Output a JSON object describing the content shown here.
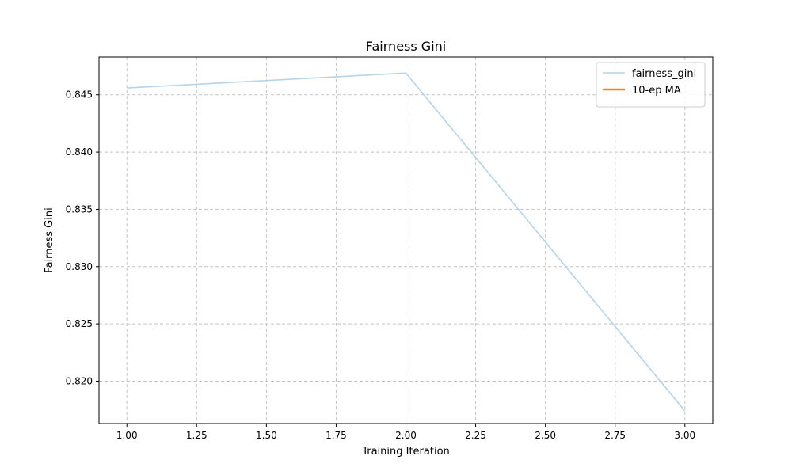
{
  "chart_data": {
    "type": "line",
    "title": "Fairness Gini",
    "xlabel": "Training Iteration",
    "ylabel": "Fairness Gini",
    "xlim": [
      0.9,
      3.1
    ],
    "ylim": [
      0.8163,
      0.8483
    ],
    "xticks": [
      1.0,
      1.25,
      1.5,
      1.75,
      2.0,
      2.25,
      2.5,
      2.75,
      3.0
    ],
    "xtick_labels": [
      "1.00",
      "1.25",
      "1.50",
      "1.75",
      "2.00",
      "2.25",
      "2.50",
      "2.75",
      "3.00"
    ],
    "yticks": [
      0.82,
      0.825,
      0.83,
      0.835,
      0.84,
      0.845
    ],
    "ytick_labels": [
      "0.820",
      "0.825",
      "0.830",
      "0.835",
      "0.840",
      "0.845"
    ],
    "grid": true,
    "legend_position": "top-right",
    "series": [
      {
        "name": "fairness_gini",
        "color": "#b5d4e9",
        "x": [
          1.0,
          2.0,
          3.0
        ],
        "y": [
          0.8456,
          0.8469,
          0.8174
        ]
      },
      {
        "name": "10-ep MA",
        "color": "#ff7f0e",
        "x": [],
        "y": []
      }
    ]
  }
}
